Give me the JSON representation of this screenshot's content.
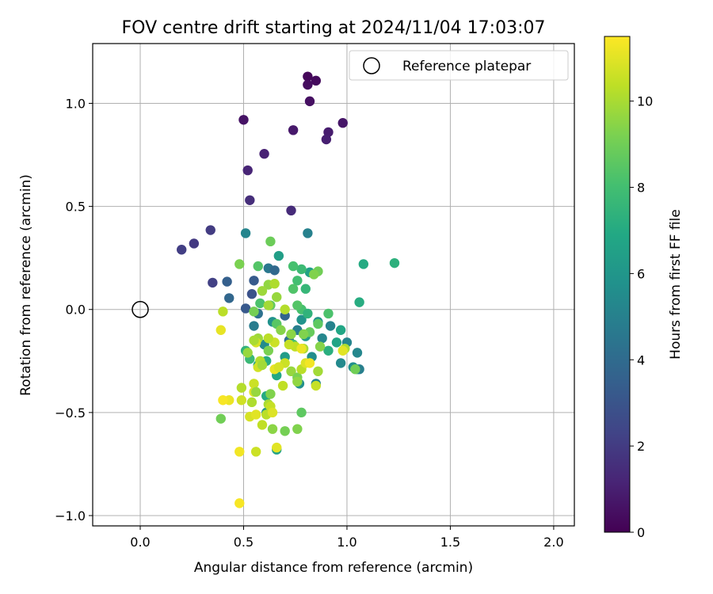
{
  "chart_data": {
    "type": "scatter",
    "title": "FOV centre drift starting at 2024/11/04 17:03:07",
    "xlabel": "Angular distance from reference (arcmin)",
    "ylabel": "Rotation from reference (arcmin)",
    "xlim": [
      -0.23,
      2.1
    ],
    "ylim": [
      -1.05,
      1.29
    ],
    "xticks": [
      0.0,
      0.5,
      1.0,
      1.5,
      2.0
    ],
    "xtick_labels": [
      "0.0",
      "0.5",
      "1.0",
      "1.5",
      "2.0"
    ],
    "yticks": [
      -1.0,
      -0.5,
      0.0,
      0.5,
      1.0
    ],
    "ytick_labels": [
      "−1.0",
      "−0.5",
      "0.0",
      "0.5",
      "1.0"
    ],
    "grid": true,
    "legend": {
      "placement": "top-right",
      "label": "Reference platepar"
    },
    "reference_point": {
      "x": 0.0,
      "y": 0.0
    },
    "colorbar": {
      "label": "Hours from first FF file",
      "range": [
        0,
        11.5
      ],
      "ticks": [
        0,
        2,
        4,
        6,
        8,
        10
      ],
      "tick_labels": [
        "0",
        "2",
        "4",
        "6",
        "8",
        "10"
      ],
      "colormap": "viridis"
    },
    "points": [
      {
        "x": 0.81,
        "y": 1.13,
        "h": 0.2
      },
      {
        "x": 0.85,
        "y": 1.11,
        "h": 0.3
      },
      {
        "x": 0.81,
        "y": 1.09,
        "h": 0.4
      },
      {
        "x": 0.82,
        "y": 1.01,
        "h": 0.5
      },
      {
        "x": 0.5,
        "y": 0.92,
        "h": 0.6
      },
      {
        "x": 0.98,
        "y": 0.905,
        "h": 0.7
      },
      {
        "x": 0.74,
        "y": 0.87,
        "h": 0.8
      },
      {
        "x": 0.91,
        "y": 0.86,
        "h": 0.9
      },
      {
        "x": 0.9,
        "y": 0.825,
        "h": 1.0
      },
      {
        "x": 0.6,
        "y": 0.755,
        "h": 1.1
      },
      {
        "x": 0.52,
        "y": 0.675,
        "h": 1.2
      },
      {
        "x": 0.53,
        "y": 0.53,
        "h": 1.5
      },
      {
        "x": 0.73,
        "y": 0.48,
        "h": 1.4
      },
      {
        "x": 0.34,
        "y": 0.385,
        "h": 2.0
      },
      {
        "x": 0.26,
        "y": 0.32,
        "h": 1.9
      },
      {
        "x": 0.2,
        "y": 0.29,
        "h": 2.1
      },
      {
        "x": 0.35,
        "y": 0.13,
        "h": 2.2
      },
      {
        "x": 0.42,
        "y": 0.135,
        "h": 3.5
      },
      {
        "x": 0.43,
        "y": 0.055,
        "h": 3.8
      },
      {
        "x": 0.51,
        "y": 0.37,
        "h": 5.2
      },
      {
        "x": 0.81,
        "y": 0.37,
        "h": 5.0
      },
      {
        "x": 0.62,
        "y": 0.2,
        "h": 4.6
      },
      {
        "x": 0.65,
        "y": 0.19,
        "h": 3.9
      },
      {
        "x": 0.55,
        "y": 0.14,
        "h": 3.3
      },
      {
        "x": 0.54,
        "y": 0.075,
        "h": 2.9
      },
      {
        "x": 0.51,
        "y": 0.005,
        "h": 3.2
      },
      {
        "x": 0.57,
        "y": -0.02,
        "h": 4.3
      },
      {
        "x": 0.55,
        "y": -0.08,
        "h": 4.8
      },
      {
        "x": 0.6,
        "y": -0.17,
        "h": 5.5
      },
      {
        "x": 0.64,
        "y": -0.06,
        "h": 5.8
      },
      {
        "x": 0.67,
        "y": 0.26,
        "h": 6.4
      },
      {
        "x": 0.7,
        "y": -0.03,
        "h": 3.7
      },
      {
        "x": 0.72,
        "y": -0.15,
        "h": 4.2
      },
      {
        "x": 0.76,
        "y": -0.1,
        "h": 4.9
      },
      {
        "x": 0.78,
        "y": -0.05,
        "h": 5.9
      },
      {
        "x": 0.8,
        "y": -0.13,
        "h": 6.2
      },
      {
        "x": 0.82,
        "y": 0.18,
        "h": 6.6
      },
      {
        "x": 0.83,
        "y": -0.23,
        "h": 5.6
      },
      {
        "x": 0.86,
        "y": -0.06,
        "h": 6.0
      },
      {
        "x": 0.88,
        "y": -0.14,
        "h": 5.3
      },
      {
        "x": 0.92,
        "y": -0.08,
        "h": 5.1
      },
      {
        "x": 0.95,
        "y": -0.16,
        "h": 6.7
      },
      {
        "x": 0.97,
        "y": -0.26,
        "h": 5.4
      },
      {
        "x": 1.0,
        "y": -0.16,
        "h": 5.2
      },
      {
        "x": 1.03,
        "y": -0.28,
        "h": 5.7
      },
      {
        "x": 1.05,
        "y": -0.29,
        "h": 6.1
      },
      {
        "x": 1.06,
        "y": -0.29,
        "h": 4.9
      },
      {
        "x": 1.05,
        "y": -0.21,
        "h": 5.3
      },
      {
        "x": 0.97,
        "y": -0.1,
        "h": 6.8
      },
      {
        "x": 0.91,
        "y": -0.2,
        "h": 7.2
      },
      {
        "x": 0.85,
        "y": -0.36,
        "h": 5.2
      },
      {
        "x": 0.77,
        "y": -0.36,
        "h": 5.7
      },
      {
        "x": 0.7,
        "y": -0.23,
        "h": 6.3
      },
      {
        "x": 0.66,
        "y": -0.32,
        "h": 6.9
      },
      {
        "x": 0.61,
        "y": -0.25,
        "h": 7.1
      },
      {
        "x": 0.57,
        "y": -0.27,
        "h": 6.5
      },
      {
        "x": 0.51,
        "y": -0.2,
        "h": 7.4
      },
      {
        "x": 0.53,
        "y": -0.24,
        "h": 7.7
      },
      {
        "x": 0.61,
        "y": -0.42,
        "h": 7.0
      },
      {
        "x": 0.61,
        "y": -0.5,
        "h": 5.9
      },
      {
        "x": 0.66,
        "y": -0.68,
        "h": 6.6
      },
      {
        "x": 1.06,
        "y": 0.035,
        "h": 7.1
      },
      {
        "x": 1.08,
        "y": 0.22,
        "h": 7.0
      },
      {
        "x": 1.23,
        "y": 0.225,
        "h": 7.3
      },
      {
        "x": 0.78,
        "y": 0.195,
        "h": 7.8
      },
      {
        "x": 0.76,
        "y": 0.14,
        "h": 8.0
      },
      {
        "x": 0.74,
        "y": 0.1,
        "h": 8.3
      },
      {
        "x": 0.8,
        "y": 0.1,
        "h": 7.6
      },
      {
        "x": 0.78,
        "y": 0.0,
        "h": 8.1
      },
      {
        "x": 0.81,
        "y": -0.02,
        "h": 7.4
      },
      {
        "x": 0.76,
        "y": 0.02,
        "h": 8.4
      },
      {
        "x": 0.91,
        "y": -0.02,
        "h": 8.2
      },
      {
        "x": 0.86,
        "y": -0.07,
        "h": 8.6
      },
      {
        "x": 0.82,
        "y": -0.11,
        "h": 8.8
      },
      {
        "x": 0.74,
        "y": -0.17,
        "h": 8.0
      },
      {
        "x": 0.66,
        "y": -0.07,
        "h": 8.5
      },
      {
        "x": 0.63,
        "y": 0.02,
        "h": 8.7
      },
      {
        "x": 0.58,
        "y": 0.03,
        "h": 8.2
      },
      {
        "x": 0.57,
        "y": 0.21,
        "h": 8.4
      },
      {
        "x": 0.63,
        "y": 0.33,
        "h": 8.9
      },
      {
        "x": 0.74,
        "y": 0.21,
        "h": 8.1
      },
      {
        "x": 0.86,
        "y": 0.185,
        "h": 9.0
      },
      {
        "x": 0.84,
        "y": 0.17,
        "h": 9.3
      },
      {
        "x": 0.48,
        "y": 0.22,
        "h": 9.2
      },
      {
        "x": 0.55,
        "y": -0.01,
        "h": 9.1
      },
      {
        "x": 0.62,
        "y": 0.12,
        "h": 9.6
      },
      {
        "x": 0.65,
        "y": 0.125,
        "h": 10.1
      },
      {
        "x": 0.59,
        "y": 0.09,
        "h": 9.8
      },
      {
        "x": 0.66,
        "y": 0.06,
        "h": 9.7
      },
      {
        "x": 0.7,
        "y": 0.0,
        "h": 10.2
      },
      {
        "x": 0.62,
        "y": 0.02,
        "h": 9.9
      },
      {
        "x": 0.68,
        "y": -0.1,
        "h": 9.4
      },
      {
        "x": 0.73,
        "y": -0.12,
        "h": 9.5
      },
      {
        "x": 0.79,
        "y": -0.12,
        "h": 9.3
      },
      {
        "x": 0.79,
        "y": -0.19,
        "h": 10.0
      },
      {
        "x": 0.75,
        "y": -0.18,
        "h": 10.4
      },
      {
        "x": 0.72,
        "y": -0.17,
        "h": 10.5
      },
      {
        "x": 0.65,
        "y": -0.16,
        "h": 10.6
      },
      {
        "x": 0.62,
        "y": -0.14,
        "h": 10.3
      },
      {
        "x": 0.57,
        "y": -0.14,
        "h": 9.8
      },
      {
        "x": 0.56,
        "y": -0.16,
        "h": 10.8
      },
      {
        "x": 0.55,
        "y": -0.15,
        "h": 10.0
      },
      {
        "x": 0.52,
        "y": -0.21,
        "h": 9.7
      },
      {
        "x": 0.4,
        "y": -0.01,
        "h": 10.3
      },
      {
        "x": 0.39,
        "y": -0.1,
        "h": 11.1
      },
      {
        "x": 0.58,
        "y": -0.25,
        "h": 10.2
      },
      {
        "x": 0.57,
        "y": -0.28,
        "h": 10.7
      },
      {
        "x": 0.59,
        "y": -0.27,
        "h": 9.9
      },
      {
        "x": 0.62,
        "y": -0.2,
        "h": 9.2
      },
      {
        "x": 0.7,
        "y": -0.26,
        "h": 10.6
      },
      {
        "x": 0.65,
        "y": -0.29,
        "h": 11.1
      },
      {
        "x": 0.67,
        "y": -0.28,
        "h": 10.8
      },
      {
        "x": 0.73,
        "y": -0.3,
        "h": 9.7
      },
      {
        "x": 0.76,
        "y": -0.33,
        "h": 9.2
      },
      {
        "x": 0.76,
        "y": -0.35,
        "h": 9.6
      },
      {
        "x": 0.78,
        "y": -0.29,
        "h": 10.3
      },
      {
        "x": 0.8,
        "y": -0.26,
        "h": 10.9
      },
      {
        "x": 0.82,
        "y": -0.26,
        "h": 11.3
      },
      {
        "x": 0.86,
        "y": -0.3,
        "h": 9.9
      },
      {
        "x": 0.85,
        "y": -0.37,
        "h": 10.5
      },
      {
        "x": 0.87,
        "y": -0.18,
        "h": 9.4
      },
      {
        "x": 0.99,
        "y": -0.19,
        "h": 10.1
      },
      {
        "x": 0.98,
        "y": -0.2,
        "h": 11.0
      },
      {
        "x": 1.04,
        "y": -0.29,
        "h": 9.0
      },
      {
        "x": 0.78,
        "y": -0.19,
        "h": 11.2
      },
      {
        "x": 0.69,
        "y": -0.37,
        "h": 10.4
      },
      {
        "x": 0.63,
        "y": -0.41,
        "h": 9.3
      },
      {
        "x": 0.62,
        "y": -0.46,
        "h": 10.0
      },
      {
        "x": 0.55,
        "y": -0.36,
        "h": 10.6
      },
      {
        "x": 0.55,
        "y": -0.4,
        "h": 10.9
      },
      {
        "x": 0.54,
        "y": -0.45,
        "h": 10.1
      },
      {
        "x": 0.56,
        "y": -0.4,
        "h": 9.7
      },
      {
        "x": 0.49,
        "y": -0.38,
        "h": 10.2
      },
      {
        "x": 0.49,
        "y": -0.44,
        "h": 10.7
      },
      {
        "x": 0.43,
        "y": -0.44,
        "h": 11.2
      },
      {
        "x": 0.4,
        "y": -0.44,
        "h": 11.4
      },
      {
        "x": 0.39,
        "y": -0.53,
        "h": 9.0
      },
      {
        "x": 0.53,
        "y": -0.52,
        "h": 10.8
      },
      {
        "x": 0.56,
        "y": -0.51,
        "h": 11.0
      },
      {
        "x": 0.61,
        "y": -0.51,
        "h": 10.3
      },
      {
        "x": 0.63,
        "y": -0.47,
        "h": 10.5
      },
      {
        "x": 0.64,
        "y": -0.5,
        "h": 10.9
      },
      {
        "x": 0.64,
        "y": -0.58,
        "h": 9.5
      },
      {
        "x": 0.7,
        "y": -0.59,
        "h": 9.1
      },
      {
        "x": 0.76,
        "y": -0.58,
        "h": 9.3
      },
      {
        "x": 0.78,
        "y": -0.5,
        "h": 8.6
      },
      {
        "x": 0.59,
        "y": -0.56,
        "h": 10.4
      },
      {
        "x": 0.56,
        "y": -0.69,
        "h": 10.6
      },
      {
        "x": 0.66,
        "y": -0.67,
        "h": 11.0
      },
      {
        "x": 0.48,
        "y": -0.69,
        "h": 11.3
      },
      {
        "x": 0.48,
        "y": -0.94,
        "h": 11.4
      }
    ]
  }
}
